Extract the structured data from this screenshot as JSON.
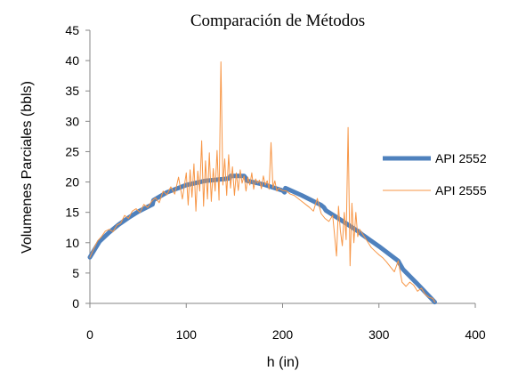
{
  "chart_data": {
    "type": "line",
    "title": "Comparación de Métodos",
    "xlabel": "h (in)",
    "ylabel": "Volumenes  Parciales (bbls)",
    "xlim": [
      0,
      400
    ],
    "ylim": [
      0,
      45
    ],
    "x_ticks": [
      "0",
      "100",
      "200",
      "300",
      "400"
    ],
    "y_ticks": [
      "0",
      "5",
      "10",
      "15",
      "20",
      "25",
      "30",
      "35",
      "40",
      "45"
    ],
    "grid": false,
    "legend_position": "right",
    "series": [
      {
        "name": "API 2552",
        "color": "#4f81bd",
        "x": [
          0,
          10,
          20,
          30,
          40,
          50,
          60,
          65,
          66,
          80,
          100,
          120,
          140,
          145,
          146,
          160,
          162,
          163,
          180,
          200,
          202,
          203,
          220,
          240,
          243,
          245,
          260,
          280,
          282,
          300,
          320,
          322,
          325,
          340,
          358
        ],
        "y": [
          7.6,
          10.2,
          11.7,
          13.0,
          14.1,
          15.1,
          15.9,
          16.3,
          17.0,
          18.3,
          19.5,
          20.2,
          20.5,
          20.6,
          21.0,
          21.0,
          20.6,
          20.2,
          19.6,
          18.6,
          18.3,
          19.0,
          17.8,
          16.2,
          15.8,
          15.3,
          13.8,
          11.7,
          11.4,
          9.4,
          7.0,
          6.4,
          5.6,
          3.2,
          0.2
        ]
      },
      {
        "name": "API 2555",
        "color": "#f79646",
        "x": [
          0,
          4,
          8,
          12,
          16,
          20,
          24,
          28,
          32,
          36,
          40,
          44,
          48,
          52,
          56,
          60,
          64,
          68,
          72,
          76,
          80,
          84,
          88,
          92,
          96,
          100,
          102,
          104,
          106,
          108,
          110,
          112,
          114,
          116,
          118,
          120,
          122,
          124,
          126,
          128,
          130,
          132,
          134,
          136,
          138,
          140,
          142,
          144,
          146,
          148,
          150,
          152,
          154,
          156,
          158,
          160,
          162,
          164,
          166,
          168,
          170,
          172,
          174,
          176,
          178,
          180,
          182,
          184,
          186,
          188,
          190,
          192,
          194,
          196,
          200,
          204,
          208,
          212,
          216,
          220,
          224,
          228,
          232,
          236,
          240,
          244,
          248,
          252,
          256,
          258,
          260,
          262,
          264,
          266,
          268,
          270,
          272,
          274,
          276,
          278,
          280,
          284,
          288,
          292,
          296,
          300,
          304,
          308,
          312,
          316,
          320,
          324,
          328,
          332,
          336,
          340,
          344,
          348,
          352,
          356,
          358
        ],
        "y": [
          7.6,
          9.0,
          10.3,
          11.0,
          11.9,
          12.2,
          11.8,
          12.9,
          13.2,
          14.5,
          14.0,
          15.2,
          15.6,
          15.0,
          16.3,
          15.8,
          16.8,
          17.4,
          16.6,
          18.5,
          17.9,
          19.2,
          18.0,
          20.8,
          17.2,
          21.5,
          16.2,
          22.0,
          17.5,
          23.0,
          15.2,
          21.8,
          18.5,
          26.8,
          16.0,
          23.5,
          17.2,
          24.8,
          16.8,
          22.2,
          18.5,
          25.2,
          17.0,
          39.8,
          19.5,
          23.8,
          17.8,
          24.5,
          19.0,
          22.5,
          17.8,
          21.5,
          18.6,
          22.0,
          19.8,
          21.0,
          18.5,
          20.8,
          19.5,
          21.5,
          18.8,
          20.5,
          19.8,
          20.3,
          18.9,
          21.0,
          19.5,
          20.2,
          18.8,
          26.5,
          19.0,
          20.2,
          18.5,
          19.0,
          18.6,
          18.5,
          18.0,
          17.8,
          17.3,
          16.8,
          16.3,
          15.8,
          15.2,
          17.3,
          14.8,
          14.0,
          13.5,
          14.5,
          7.8,
          16.0,
          12.0,
          9.5,
          15.0,
          10.5,
          29.0,
          6.2,
          16.5,
          10.0,
          15.0,
          11.0,
          12.2,
          11.2,
          10.2,
          9.2,
          8.6,
          8.0,
          7.5,
          6.8,
          6.0,
          5.2,
          7.0,
          3.5,
          2.8,
          3.5,
          3.0,
          2.0,
          2.5,
          1.5,
          1.0,
          0.8,
          0.2
        ]
      }
    ]
  }
}
